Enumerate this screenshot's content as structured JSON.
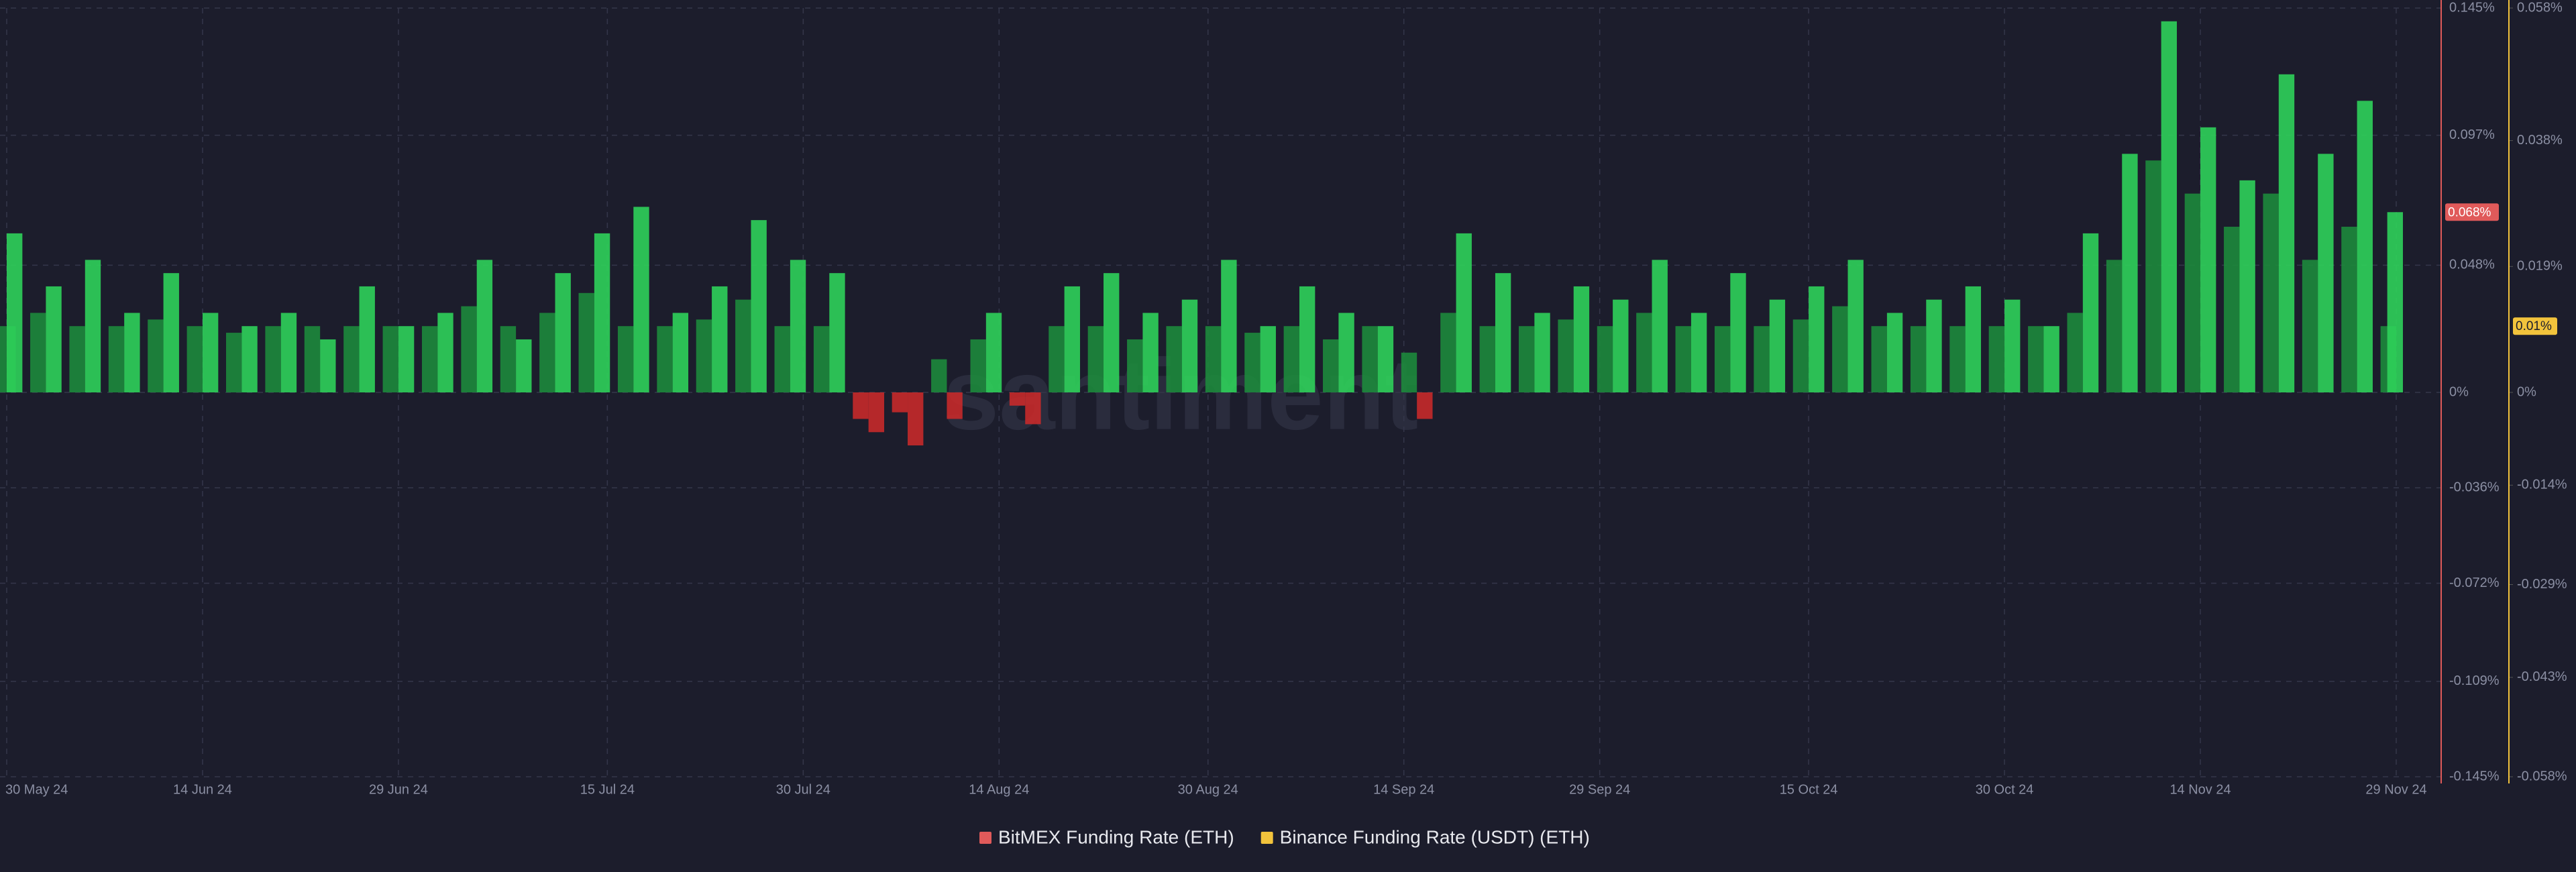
{
  "chart_data": {
    "type": "bar",
    "watermark": "santiment",
    "x": [
      "2024-05-30",
      "2024-06-02",
      "2024-06-05",
      "2024-06-08",
      "2024-06-11",
      "2024-06-14",
      "2024-06-17",
      "2024-06-20",
      "2024-06-23",
      "2024-06-26",
      "2024-06-29",
      "2024-07-02",
      "2024-07-05",
      "2024-07-08",
      "2024-07-11",
      "2024-07-14",
      "2024-07-17",
      "2024-07-20",
      "2024-07-23",
      "2024-07-26",
      "2024-07-29",
      "2024-08-01",
      "2024-08-04",
      "2024-08-07",
      "2024-08-10",
      "2024-08-13",
      "2024-08-16",
      "2024-08-19",
      "2024-08-22",
      "2024-08-25",
      "2024-08-28",
      "2024-08-31",
      "2024-09-03",
      "2024-09-06",
      "2024-09-09",
      "2024-09-12",
      "2024-09-15",
      "2024-09-18",
      "2024-09-21",
      "2024-09-24",
      "2024-09-27",
      "2024-09-30",
      "2024-10-03",
      "2024-10-06",
      "2024-10-09",
      "2024-10-12",
      "2024-10-15",
      "2024-10-18",
      "2024-10-21",
      "2024-10-24",
      "2024-10-27",
      "2024-10-30",
      "2024-11-02",
      "2024-11-05",
      "2024-11-08",
      "2024-11-11",
      "2024-11-14",
      "2024-11-17",
      "2024-11-20",
      "2024-11-23",
      "2024-11-26",
      "2024-11-29"
    ],
    "xlim": [
      "2024-05-30",
      "2024-11-29"
    ],
    "xticks": [
      {
        "value": "2024-05-30",
        "label": "30 May 24"
      },
      {
        "value": "2024-06-14",
        "label": "14 Jun 24"
      },
      {
        "value": "2024-06-29",
        "label": "29 Jun 24"
      },
      {
        "value": "2024-07-15",
        "label": "15 Jul 24"
      },
      {
        "value": "2024-07-30",
        "label": "30 Jul 24"
      },
      {
        "value": "2024-08-14",
        "label": "14 Aug 24"
      },
      {
        "value": "2024-08-30",
        "label": "30 Aug 24"
      },
      {
        "value": "2024-09-14",
        "label": "14 Sep 24"
      },
      {
        "value": "2024-09-29",
        "label": "29 Sep 24"
      },
      {
        "value": "2024-10-15",
        "label": "15 Oct 24"
      },
      {
        "value": "2024-10-30",
        "label": "30 Oct 24"
      },
      {
        "value": "2024-11-14",
        "label": "14 Nov 24"
      },
      {
        "value": "2024-11-29",
        "label": "29 Nov 24"
      }
    ],
    "ylim": [
      -0.145,
      0.145
    ],
    "yticks": [
      {
        "value": 0.145,
        "label": "0.145%"
      },
      {
        "value": 0.097,
        "label": "0.097%"
      },
      {
        "value": 0.048,
        "label": "0.048%"
      },
      {
        "value": 0,
        "label": "0%"
      },
      {
        "value": -0.036,
        "label": "-0.036%"
      },
      {
        "value": -0.072,
        "label": "-0.072%"
      },
      {
        "value": -0.109,
        "label": "-0.109%"
      },
      {
        "value": -0.145,
        "label": "-0.145%"
      }
    ],
    "y2lim": [
      -0.058,
      0.058
    ],
    "y2ticks": [
      {
        "value": 0.058,
        "label": "0.058%"
      },
      {
        "value": 0.038,
        "label": "0.038%"
      },
      {
        "value": 0.019,
        "label": "0.019%"
      },
      {
        "value": 0,
        "label": "0%"
      },
      {
        "value": -0.014,
        "label": "-0.014%"
      },
      {
        "value": -0.029,
        "label": "-0.029%"
      },
      {
        "value": -0.043,
        "label": "-0.043%"
      },
      {
        "value": -0.058,
        "label": "-0.058%"
      }
    ],
    "grid": true,
    "legend": "bottom",
    "negative_color": "#c62a2a",
    "series": [
      {
        "name": "BitMEX Funding Rate (ETH)",
        "color": "#e05a5a",
        "bar_color": "#2fd15a",
        "axis": "y",
        "current": {
          "value": 0.068,
          "label": "0.068%"
        },
        "values": [
          0.06,
          0.04,
          0.05,
          0.03,
          0.045,
          0.03,
          0.025,
          0.03,
          0.02,
          0.04,
          0.025,
          0.03,
          0.05,
          0.02,
          0.045,
          0.06,
          0.07,
          0.03,
          0.04,
          0.065,
          0.05,
          0.045,
          -0.015,
          -0.02,
          -0.01,
          0.03,
          -0.012,
          0.04,
          0.045,
          0.03,
          0.035,
          0.05,
          0.025,
          0.04,
          0.03,
          0.025,
          -0.01,
          0.06,
          0.045,
          0.03,
          0.04,
          0.035,
          0.05,
          0.03,
          0.045,
          0.035,
          0.04,
          0.05,
          0.03,
          0.035,
          0.04,
          0.035,
          0.025,
          0.06,
          0.09,
          0.14,
          0.1,
          0.08,
          0.12,
          0.09,
          0.11,
          0.068
        ]
      },
      {
        "name": "Binance Funding Rate (USDT) (ETH)",
        "color": "#f2c33c",
        "bar_color": "#1d8a3c",
        "axis": "y2",
        "current": {
          "value": 0.01,
          "label": "0.01%"
        },
        "values": [
          0.01,
          0.012,
          0.01,
          0.01,
          0.011,
          0.01,
          0.009,
          0.01,
          0.01,
          0.01,
          0.01,
          0.01,
          0.013,
          0.01,
          0.012,
          0.015,
          0.01,
          0.01,
          0.011,
          0.014,
          0.01,
          0.01,
          -0.004,
          -0.003,
          0.005,
          0.008,
          -0.002,
          0.01,
          0.01,
          0.008,
          0.01,
          0.01,
          0.009,
          0.01,
          0.008,
          0.01,
          0.006,
          0.012,
          0.01,
          0.01,
          0.011,
          0.01,
          0.012,
          0.01,
          0.01,
          0.01,
          0.011,
          0.013,
          0.01,
          0.01,
          0.01,
          0.01,
          0.01,
          0.012,
          0.02,
          0.035,
          0.03,
          0.025,
          0.03,
          0.02,
          0.025,
          0.01
        ]
      }
    ]
  }
}
